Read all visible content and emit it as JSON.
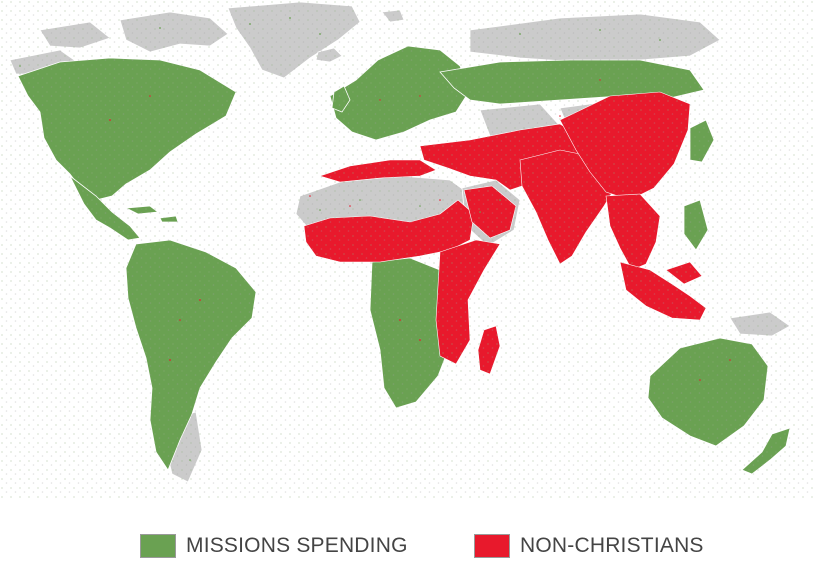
{
  "colors": {
    "land": "#cbcbcb",
    "missions": "#6aa152",
    "non_christians": "#e8192c",
    "borders": "#ffffff"
  },
  "map": {
    "projection": "world",
    "layers": [
      "land",
      "missions-spending",
      "non-christians"
    ]
  },
  "legend": {
    "items": [
      {
        "label": "MISSIONS SPENDING",
        "color": "#6aa152"
      },
      {
        "label": "NON-CHRISTIANS",
        "color": "#e8192c"
      }
    ]
  }
}
